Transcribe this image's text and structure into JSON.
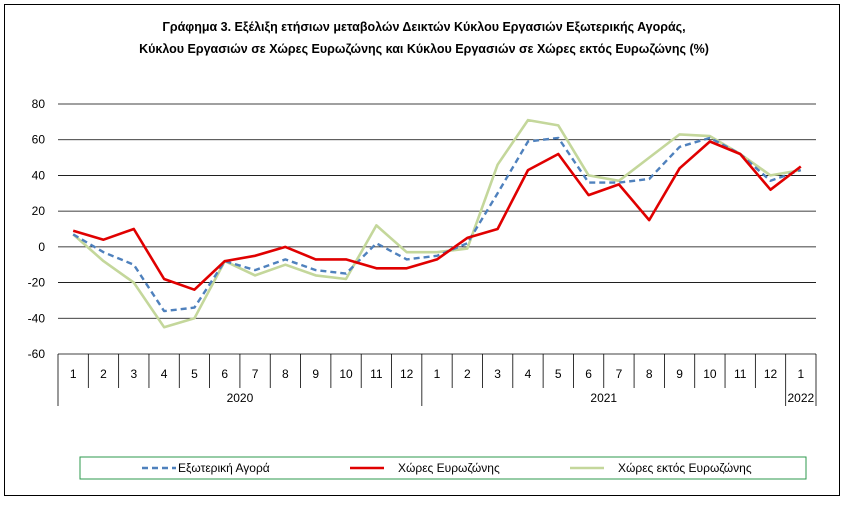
{
  "chart_data": {
    "type": "line",
    "title_lines": [
      "Γράφημα 3. Εξέλιξη  ετήσιων μεταβολών Δεικτών Κύκλου Εργασιών Εξωτερικής Αγοράς,",
      "Κύκλου Εργασιών σε Χώρες Ευρωζώνης και Κύκλου Εργασιών σε Χώρες εκτός Ευρωζώνης (%)"
    ],
    "ylim": [
      -60,
      80
    ],
    "yticks": [
      "80",
      "60",
      "40",
      "20",
      "0",
      "-20",
      "-40",
      "-60"
    ],
    "ytick_values": [
      80,
      60,
      40,
      20,
      0,
      -20,
      -40,
      -60
    ],
    "categories": [
      "1",
      "2",
      "3",
      "4",
      "5",
      "6",
      "7",
      "8",
      "9",
      "10",
      "11",
      "12",
      "1",
      "2",
      "3",
      "4",
      "5",
      "6",
      "7",
      "8",
      "9",
      "10",
      "11",
      "12",
      "1"
    ],
    "years": [
      {
        "label": "2020",
        "count": 12
      },
      {
        "label": "2021",
        "count": 12
      },
      {
        "label": "2022",
        "count": 1
      }
    ],
    "grid": "horizontal",
    "legend_position": "bottom",
    "series": [
      {
        "name": "Εξωτερική Αγορά",
        "color": "#4f81bd",
        "style": "dashed",
        "values": [
          7,
          -3,
          -10,
          -36,
          -34,
          -8,
          -13,
          -7,
          -13,
          -15,
          2,
          -7,
          -5,
          2,
          30,
          59,
          61,
          36,
          36,
          38,
          56,
          61,
          52,
          37,
          43
        ]
      },
      {
        "name": "Χώρες Ευρωζώνης",
        "color": "#e00000",
        "style": "solid",
        "values": [
          9,
          4,
          10,
          -18,
          -24,
          -8,
          -5,
          0,
          -7,
          -7,
          -12,
          -12,
          -7,
          5,
          10,
          43,
          52,
          29,
          35,
          15,
          44,
          59,
          52,
          32,
          45
        ]
      },
      {
        "name": "Χώρες εκτός Ευρωζώνης",
        "color": "#c4d79b",
        "style": "solid",
        "values": [
          7,
          -8,
          -20,
          -45,
          -40,
          -8,
          -16,
          -10,
          -16,
          -18,
          12,
          -3,
          -3,
          -1,
          46,
          71,
          68,
          40,
          37,
          50,
          63,
          62,
          52,
          40,
          43
        ]
      }
    ]
  }
}
